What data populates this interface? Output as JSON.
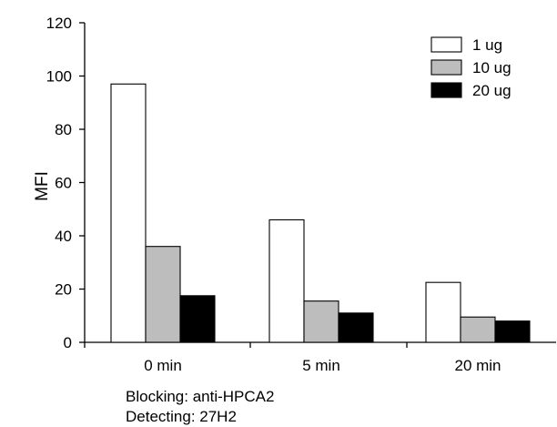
{
  "chart_data": {
    "type": "bar",
    "title": "",
    "xlabel": "",
    "ylabel": "MFI",
    "ylim": [
      0,
      120
    ],
    "yticks": [
      0,
      20,
      40,
      60,
      80,
      100,
      120
    ],
    "categories": [
      "0 min",
      "5 min",
      "20 min"
    ],
    "series": [
      {
        "name": "1 ug",
        "color": "#ffffff",
        "values": [
          97,
          46,
          22.5
        ]
      },
      {
        "name": "10 ug",
        "color": "#bdbdbd",
        "values": [
          36,
          15.5,
          9.5
        ]
      },
      {
        "name": "20 ug",
        "color": "#000000",
        "values": [
          17.5,
          11,
          8
        ]
      }
    ],
    "legend_position": "top-right",
    "grid": false
  },
  "notes": {
    "blocking": "Blocking: anti-HPCA2",
    "detecting": "Detecting: 27H2"
  }
}
